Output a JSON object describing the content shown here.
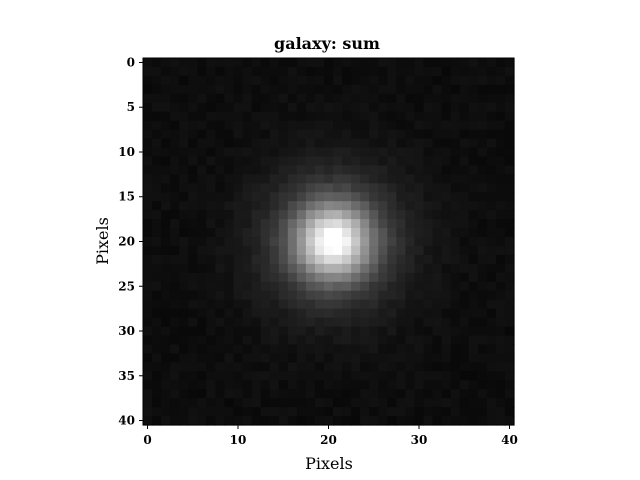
{
  "chart_data": {
    "type": "heatmap",
    "title": "galaxy: sum",
    "xlabel": "Pixels",
    "ylabel": "Pixels",
    "colormap": "grayscale",
    "grid": false,
    "image_size": [
      41,
      41
    ],
    "xlim": [
      -0.5,
      40.5
    ],
    "ylim": [
      40.5,
      -0.5
    ],
    "xticks": [
      0,
      10,
      20,
      30,
      40
    ],
    "yticks": [
      0,
      5,
      10,
      15,
      20,
      25,
      30,
      35,
      40
    ],
    "source": {
      "center_x": 20.5,
      "center_y": 20,
      "core_sigma": 2.8,
      "halo_sigma": 5.5,
      "peak_value": 1.0,
      "background_level": 0.05
    }
  }
}
